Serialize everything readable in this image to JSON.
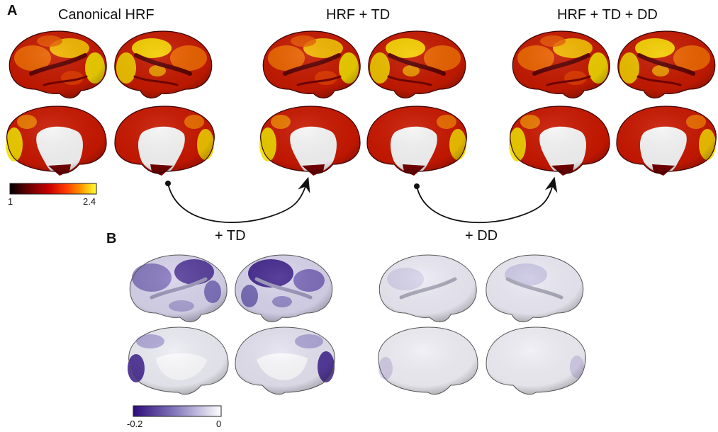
{
  "panel_a": {
    "letter": "A",
    "titles": [
      "Canonical HRF",
      "HRF + TD",
      "HRF + TD + DD"
    ],
    "colorbar": {
      "min_label": "1",
      "max_label": "2.4",
      "colors": [
        "#000000",
        "#6b0000",
        "#c80000",
        "#ff3a00",
        "#ff9c00",
        "#ffff30"
      ]
    }
  },
  "panel_b": {
    "letter": "B",
    "titles": [
      "+ TD",
      "+ DD"
    ],
    "colorbar": {
      "min_label": "-0.2",
      "max_label": "0",
      "colors": [
        "#2f0c7a",
        "#7e72b8",
        "#ffffff"
      ]
    }
  },
  "icons": {
    "brain": "brain-surface-icon",
    "arrow": "curved-arrow-icon"
  }
}
